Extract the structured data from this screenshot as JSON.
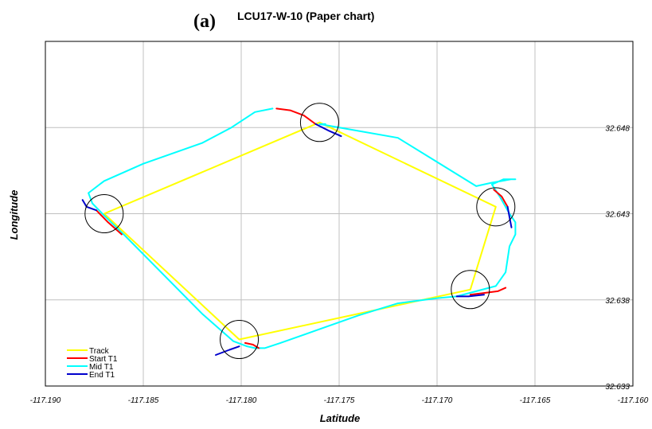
{
  "chart_data": {
    "type": "line",
    "panel_label": "(a)",
    "title": "LCU17-W-10 (Paper chart)",
    "xlabel": "Latitude",
    "ylabel": "Longitude",
    "xlim": [
      -117.19,
      -117.16
    ],
    "ylim": [
      32.633,
      32.653
    ],
    "xticks": [
      "-117.190",
      "-117.185",
      "-117.180",
      "-117.175",
      "-117.170",
      "-117.165",
      "-117.160"
    ],
    "yticks": [
      "32.633",
      "32.638",
      "32.643",
      "32.648"
    ],
    "grid": true,
    "legend_position": "bottom-left",
    "colors": {
      "track": "#ffff00",
      "start": "#ff0000",
      "mid": "#00ffff",
      "end": "#0000cc",
      "circle": "#000000",
      "grid": "#c0c0c0"
    },
    "series": [
      {
        "name": "Track",
        "color": "#ffff00",
        "x": [
          -117.187,
          -117.176,
          -117.167,
          -117.1683,
          -117.1801,
          -117.187
        ],
        "y": [
          32.643,
          32.6483,
          32.6434,
          32.6386,
          32.6357,
          32.643
        ]
      },
      {
        "name": "Start T1",
        "color": "#ff0000",
        "segments": [
          {
            "x": [
              -117.1782,
              -117.1775,
              -117.1768,
              -117.1762
            ],
            "y": [
              32.6491,
              32.649,
              32.6487,
              32.6482
            ]
          },
          {
            "x": [
              -117.1671,
              -117.1667,
              -117.1664
            ],
            "y": [
              32.6444,
              32.644,
              32.6434
            ]
          },
          {
            "x": [
              -117.1683,
              -117.1676,
              -117.1669,
              -117.1665
            ],
            "y": [
              32.6383,
              32.6384,
              32.6385,
              32.6387
            ]
          },
          {
            "x": [
              -117.1798,
              -117.1794,
              -117.1791
            ],
            "y": [
              32.6355,
              32.6354,
              32.6352
            ]
          },
          {
            "x": [
              -117.1874,
              -117.1868,
              -117.1861
            ],
            "y": [
              32.6432,
              32.6425,
              32.6418
            ]
          }
        ]
      },
      {
        "name": "Mid T1",
        "color": "#00ffff",
        "x": [
          -117.1784,
          -117.1793,
          -117.1805,
          -117.182,
          -117.185,
          -117.187,
          -117.1878,
          -117.1876,
          -117.187,
          -117.186,
          -117.184,
          -117.182,
          -117.1804,
          -117.1797,
          -117.1793,
          -117.1788,
          -117.178,
          -117.176,
          -117.174,
          -117.172,
          -117.17,
          -117.169,
          -117.167,
          -117.1665,
          -117.1663,
          -117.166,
          -117.166,
          -117.1663,
          -117.1668,
          -117.1672,
          -117.1668,
          -117.1666,
          -117.1663,
          -117.166,
          -117.1662,
          -117.1667,
          -117.1672,
          -117.168,
          -117.17,
          -117.172,
          -117.1745,
          -117.176,
          -117.1758,
          -117.1757
        ],
        "y": [
          32.6491,
          32.6489,
          32.648,
          32.6471,
          32.6459,
          32.6449,
          32.6442,
          32.6436,
          32.6429,
          32.6418,
          32.6395,
          32.6372,
          32.6356,
          32.6353,
          32.6352,
          32.6352,
          32.6355,
          32.6363,
          32.6371,
          32.6378,
          32.6381,
          32.6382,
          32.6388,
          32.6396,
          32.6411,
          32.6418,
          32.6425,
          32.643,
          32.644,
          32.6447,
          32.6449,
          32.645,
          32.645,
          32.645,
          32.645,
          32.6449,
          32.6448,
          32.6446,
          32.646,
          32.6474,
          32.6479,
          32.6482,
          32.6482,
          32.6482
        ]
      },
      {
        "name": "End T1",
        "color": "#0000cc",
        "segments": [
          {
            "x": [
              -117.1762,
              -117.1755,
              -117.1749
            ],
            "y": [
              32.6482,
              32.6478,
              32.6475
            ]
          },
          {
            "x": [
              -117.1664,
              -117.1663,
              -117.1662
            ],
            "y": [
              32.6434,
              32.6428,
              32.6422
            ]
          },
          {
            "x": [
              -117.169,
              -117.1684,
              -117.1676
            ],
            "y": [
              32.6382,
              32.6382,
              32.6383
            ]
          },
          {
            "x": [
              -117.1801,
              -117.1806,
              -117.1813
            ],
            "y": [
              32.6353,
              32.6351,
              32.6348
            ]
          },
          {
            "x": [
              -117.1881,
              -117.1879,
              -117.1874
            ],
            "y": [
              32.6438,
              32.6434,
              32.6432
            ]
          }
        ]
      }
    ],
    "waypoint_circles": [
      {
        "x": -117.176,
        "y": 32.6483
      },
      {
        "x": -117.167,
        "y": 32.6434
      },
      {
        "x": -117.1683,
        "y": 32.6386
      },
      {
        "x": -117.1801,
        "y": 32.6357
      },
      {
        "x": -117.187,
        "y": 32.643
      }
    ]
  }
}
